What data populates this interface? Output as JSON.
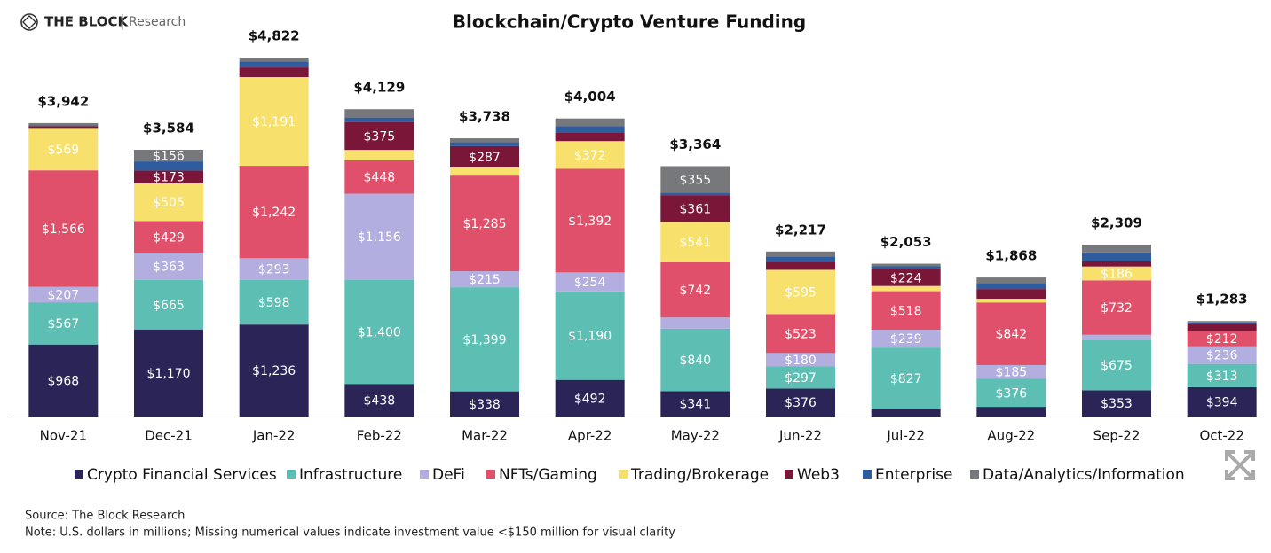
{
  "brand": "THE BLOCK",
  "brand_sub": "Research",
  "source": "Source: The Block Research",
  "note": "Note: U.S. dollars in millions; Missing numerical values indicate investment value <$150 million for visual clarity",
  "chart_data": {
    "type": "stacked_bar",
    "title": "Blockchain/Crypto Venture Funding",
    "categories": [
      "Nov-21",
      "Dec-21",
      "Jan-22",
      "Feb-22",
      "Mar-22",
      "Apr-22",
      "May-22",
      "Jun-22",
      "Jul-22",
      "Aug-22",
      "Sep-22",
      "Oct-22"
    ],
    "series": [
      {
        "name": "Crypto Financial Services",
        "color": "#2b2557",
        "values": [
          968,
          1170,
          1236,
          438,
          338,
          492,
          341,
          376,
          100,
          130,
          353,
          394
        ],
        "value_labels": [
          "$968",
          "$1,170",
          "$1,236",
          "$438",
          "$338",
          "$492",
          "$341",
          "$376",
          null,
          null,
          "$353",
          "$394"
        ]
      },
      {
        "name": "Infrastructure",
        "color": "#5dbfb4",
        "values": [
          567,
          665,
          598,
          1400,
          1399,
          1190,
          840,
          297,
          827,
          376,
          675,
          313
        ],
        "value_labels": [
          "$567",
          "$665",
          "$598",
          "$1,400",
          "$1,399",
          "$1,190",
          "$840",
          "$297",
          "$827",
          "$376",
          "$675",
          "$313"
        ]
      },
      {
        "name": "DeFi",
        "color": "#b3aee0",
        "values": [
          207,
          363,
          293,
          1156,
          215,
          254,
          150,
          180,
          239,
          185,
          70,
          236
        ],
        "value_labels": [
          "$207",
          "$363",
          "$293",
          "$1,156",
          "$215",
          "$254",
          null,
          "$180",
          "$239",
          "$185",
          null,
          "$236"
        ]
      },
      {
        "name": "NFTs/Gaming",
        "color": "#e0506a",
        "values": [
          1566,
          429,
          1242,
          448,
          1285,
          1392,
          742,
          523,
          518,
          842,
          732,
          212
        ],
        "value_labels": [
          "$1,566",
          "$429",
          "$1,242",
          "$448",
          "$1,285",
          "$1,392",
          "$742",
          "$523",
          "$518",
          "$842",
          "$732",
          "$212"
        ]
      },
      {
        "name": "Trading/Brokerage",
        "color": "#f7e06b",
        "values": [
          569,
          505,
          1191,
          140,
          110,
          372,
          541,
          595,
          70,
          50,
          186,
          0
        ],
        "value_labels": [
          "$569",
          "$505",
          "$1,191",
          null,
          null,
          "$372",
          "$541",
          "$595",
          null,
          null,
          "$186",
          null
        ]
      },
      {
        "name": "Web3",
        "color": "#7a1638",
        "values": [
          25,
          173,
          130,
          375,
          287,
          110,
          361,
          110,
          224,
          130,
          70,
          90
        ],
        "value_labels": [
          null,
          "$173",
          null,
          "$375",
          "$287",
          null,
          "$361",
          null,
          "$224",
          null,
          null,
          null
        ]
      },
      {
        "name": "Enterprise",
        "color": "#2e5c9e",
        "values": [
          10,
          123,
          80,
          60,
          50,
          90,
          34,
          70,
          40,
          80,
          120,
          20
        ],
        "value_labels": [
          null,
          null,
          null,
          null,
          null,
          null,
          null,
          null,
          null,
          null,
          null,
          null
        ]
      },
      {
        "name": "Data/Analytics/Information",
        "color": "#77787b",
        "values": [
          30,
          156,
          52,
          112,
          54,
          104,
          355,
          66,
          35,
          75,
          103,
          18
        ],
        "value_labels": [
          null,
          "$156",
          null,
          null,
          null,
          null,
          "$355",
          null,
          null,
          null,
          null,
          null
        ]
      }
    ],
    "totals": {
      "values": [
        3942,
        3584,
        4822,
        4129,
        3738,
        4004,
        3364,
        2217,
        2053,
        1868,
        2309,
        1283
      ],
      "value_labels": [
        "$3,942",
        "$3,584",
        "$4,822",
        "$4,129",
        "$3,738",
        "$4,004",
        "$3,364",
        "$2,217",
        "$2,053",
        "$1,868",
        "$2,309",
        "$1,283"
      ]
    }
  }
}
